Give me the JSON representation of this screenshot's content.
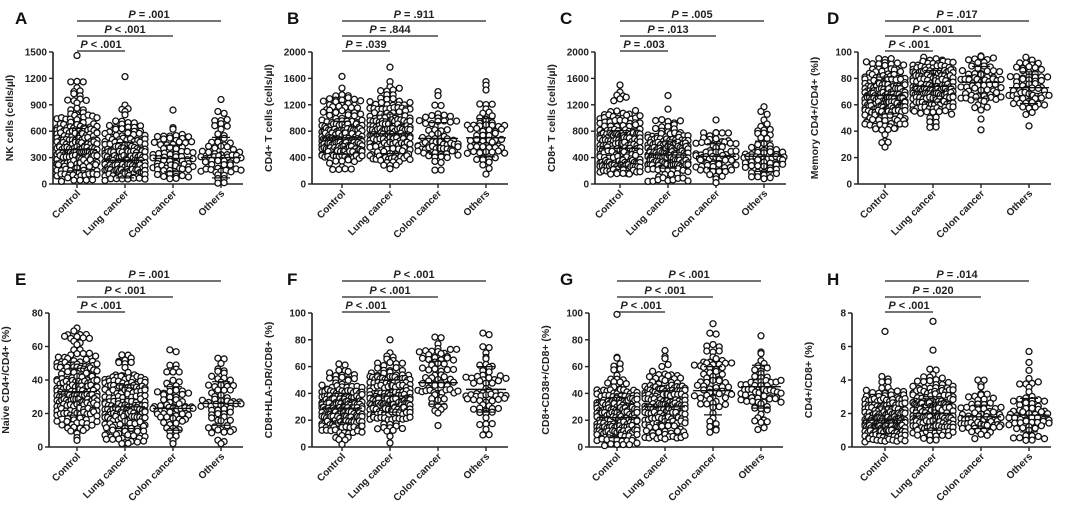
{
  "p_symbol": "P",
  "chart_data": [
    {
      "panel": "A",
      "type": "scatter",
      "ylabel": "NK cells (cells/µl)",
      "ylim": [
        0,
        1500
      ],
      "yticks": [
        0,
        300,
        600,
        900,
        1200,
        1500
      ],
      "categories": [
        "Control",
        "Lung cancer",
        "Colon cancer",
        "Others"
      ],
      "groups": [
        {
          "mean": 390,
          "sd": 240,
          "min": 30,
          "max": 1460,
          "n": 200
        },
        {
          "mean": 270,
          "sd": 200,
          "min": 40,
          "max": 1220,
          "n": 180
        },
        {
          "mean": 290,
          "sd": 150,
          "min": 60,
          "max": 840,
          "n": 70
        },
        {
          "mean": 300,
          "sd": 230,
          "min": 10,
          "max": 960,
          "n": 65
        }
      ],
      "comparisons": [
        {
          "from": "Control",
          "to": "Lung cancer",
          "p": "< .001"
        },
        {
          "from": "Control",
          "to": "Colon cancer",
          "p": "< .001"
        },
        {
          "from": "Control",
          "to": "Others",
          "p": "= .001"
        }
      ]
    },
    {
      "panel": "B",
      "type": "scatter",
      "ylabel": "CD4+ T cells (cells/µl)",
      "ylim": [
        0,
        2000
      ],
      "yticks": [
        0,
        400,
        800,
        1200,
        1600,
        2000
      ],
      "categories": [
        "Control",
        "Lung cancer",
        "Colon cancer",
        "Others"
      ],
      "groups": [
        {
          "mean": 700,
          "sd": 250,
          "min": 220,
          "max": 1630,
          "n": 200
        },
        {
          "mean": 760,
          "sd": 300,
          "min": 230,
          "max": 1770,
          "n": 180
        },
        {
          "mean": 690,
          "sd": 240,
          "min": 210,
          "max": 1400,
          "n": 70
        },
        {
          "mean": 700,
          "sd": 290,
          "min": 150,
          "max": 1550,
          "n": 65
        }
      ],
      "comparisons": [
        {
          "from": "Control",
          "to": "Lung cancer",
          "p": "= .039"
        },
        {
          "from": "Control",
          "to": "Colon cancer",
          "p": "= .844"
        },
        {
          "from": "Control",
          "to": "Others",
          "p": "= .911"
        }
      ]
    },
    {
      "panel": "C",
      "type": "scatter",
      "ylabel": "CD8+ T cells (cells/µl)",
      "ylim": [
        0,
        2000
      ],
      "yticks": [
        0,
        400,
        800,
        1200,
        1600,
        2000
      ],
      "categories": [
        "Control",
        "Lung cancer",
        "Colon cancer",
        "Others"
      ],
      "groups": [
        {
          "mean": 540,
          "sd": 270,
          "min": 150,
          "max": 1500,
          "n": 200
        },
        {
          "mean": 440,
          "sd": 200,
          "min": 40,
          "max": 1340,
          "n": 180
        },
        {
          "mean": 420,
          "sd": 190,
          "min": 20,
          "max": 970,
          "n": 70
        },
        {
          "mean": 420,
          "sd": 230,
          "min": 80,
          "max": 1170,
          "n": 65
        }
      ],
      "comparisons": [
        {
          "from": "Control",
          "to": "Lung cancer",
          "p": "= .003"
        },
        {
          "from": "Control",
          "to": "Colon cancer",
          "p": "= .013"
        },
        {
          "from": "Control",
          "to": "Others",
          "p": "= .005"
        }
      ]
    },
    {
      "panel": "D",
      "type": "scatter",
      "ylabel": "Memory CD4+/CD4+ (%l)",
      "ylim": [
        0,
        100
      ],
      "yticks": [
        0,
        20,
        40,
        60,
        80,
        100
      ],
      "categories": [
        "Control",
        "Lung cancer",
        "Colon cancer",
        "Others"
      ],
      "groups": [
        {
          "mean": 67,
          "sd": 14,
          "min": 28,
          "max": 95,
          "n": 200
        },
        {
          "mean": 74,
          "sd": 12,
          "min": 43,
          "max": 96,
          "n": 180
        },
        {
          "mean": 77,
          "sd": 12,
          "min": 41,
          "max": 97,
          "n": 70
        },
        {
          "mean": 73,
          "sd": 12,
          "min": 44,
          "max": 96,
          "n": 65
        }
      ],
      "comparisons": [
        {
          "from": "Control",
          "to": "Lung cancer",
          "p": "< .001"
        },
        {
          "from": "Control",
          "to": "Colon cancer",
          "p": "< .001"
        },
        {
          "from": "Control",
          "to": "Others",
          "p": "= .017"
        }
      ]
    },
    {
      "panel": "E",
      "type": "scatter",
      "ylabel": "Naive CD4+/CD4+ (%)",
      "ylim": [
        0,
        80
      ],
      "yticks": [
        0,
        20,
        40,
        60,
        80
      ],
      "categories": [
        "Control",
        "Lung cancer",
        "Colon cancer",
        "Others"
      ],
      "groups": [
        {
          "mean": 33,
          "sd": 14,
          "min": 4,
          "max": 71,
          "n": 200
        },
        {
          "mean": 24,
          "sd": 13,
          "min": 2,
          "max": 55,
          "n": 180
        },
        {
          "mean": 23,
          "sd": 13,
          "min": 2,
          "max": 58,
          "n": 70
        },
        {
          "mean": 26,
          "sd": 13,
          "min": 2,
          "max": 53,
          "n": 65
        }
      ],
      "comparisons": [
        {
          "from": "Control",
          "to": "Lung cancer",
          "p": "< .001"
        },
        {
          "from": "Control",
          "to": "Colon cancer",
          "p": "< .001"
        },
        {
          "from": "Control",
          "to": "Others",
          "p": "= .001"
        }
      ]
    },
    {
      "panel": "F",
      "type": "scatter",
      "ylabel": "CD8+HLA-DR/CD8+ (%)",
      "ylim": [
        0,
        100
      ],
      "yticks": [
        0,
        20,
        40,
        60,
        80,
        100
      ],
      "categories": [
        "Control",
        "Lung cancer",
        "Colon cancer",
        "Others"
      ],
      "groups": [
        {
          "mean": 29,
          "sd": 11,
          "min": 2,
          "max": 62,
          "n": 200
        },
        {
          "mean": 38,
          "sd": 12,
          "min": 3,
          "max": 80,
          "n": 180
        },
        {
          "mean": 48,
          "sd": 16,
          "min": 16,
          "max": 82,
          "n": 70
        },
        {
          "mean": 43,
          "sd": 17,
          "min": 9,
          "max": 85,
          "n": 65
        }
      ],
      "comparisons": [
        {
          "from": "Control",
          "to": "Lung cancer",
          "p": "< .001"
        },
        {
          "from": "Control",
          "to": "Colon cancer",
          "p": "< .001"
        },
        {
          "from": "Control",
          "to": "Others",
          "p": "< .001"
        }
      ]
    },
    {
      "panel": "G",
      "type": "scatter",
      "ylabel": "CD8+CD38+/CD8+ (%)",
      "ylim": [
        0,
        100
      ],
      "yticks": [
        0,
        20,
        40,
        60,
        80,
        100
      ],
      "categories": [
        "Control",
        "Lung cancer",
        "Colon cancer",
        "Others"
      ],
      "groups": [
        {
          "mean": 22,
          "sd": 15,
          "min": 1,
          "max": 99,
          "n": 200
        },
        {
          "mean": 30,
          "sd": 12,
          "min": 6,
          "max": 72,
          "n": 180
        },
        {
          "mean": 42,
          "sd": 18,
          "min": 11,
          "max": 92,
          "n": 70
        },
        {
          "mean": 45,
          "sd": 16,
          "min": 13,
          "max": 83,
          "n": 65
        }
      ],
      "comparisons": [
        {
          "from": "Control",
          "to": "Lung cancer",
          "p": "< .001"
        },
        {
          "from": "Control",
          "to": "Colon cancer",
          "p": "< .001"
        },
        {
          "from": "Control",
          "to": "Others",
          "p": "< .001"
        }
      ]
    },
    {
      "panel": "H",
      "type": "scatter",
      "ylabel": "CD4+/CD8+ (%)",
      "ylim": [
        0,
        8
      ],
      "yticks": [
        0,
        2,
        4,
        6,
        8
      ],
      "categories": [
        "Control",
        "Lung cancer",
        "Colon cancer",
        "Others"
      ],
      "groups": [
        {
          "mean": 1.6,
          "sd": 0.8,
          "min": 0.3,
          "max": 6.9,
          "n": 200
        },
        {
          "mean": 2.0,
          "sd": 1.0,
          "min": 0.4,
          "max": 7.5,
          "n": 180
        },
        {
          "mean": 1.8,
          "sd": 0.7,
          "min": 0.5,
          "max": 4.0,
          "n": 70
        },
        {
          "mean": 1.9,
          "sd": 1.0,
          "min": 0.4,
          "max": 5.7,
          "n": 65
        }
      ],
      "comparisons": [
        {
          "from": "Control",
          "to": "Lung cancer",
          "p": "< .001"
        },
        {
          "from": "Control",
          "to": "Colon cancer",
          "p": "= .020"
        },
        {
          "from": "Control",
          "to": "Others",
          "p": "= .014"
        }
      ]
    }
  ]
}
